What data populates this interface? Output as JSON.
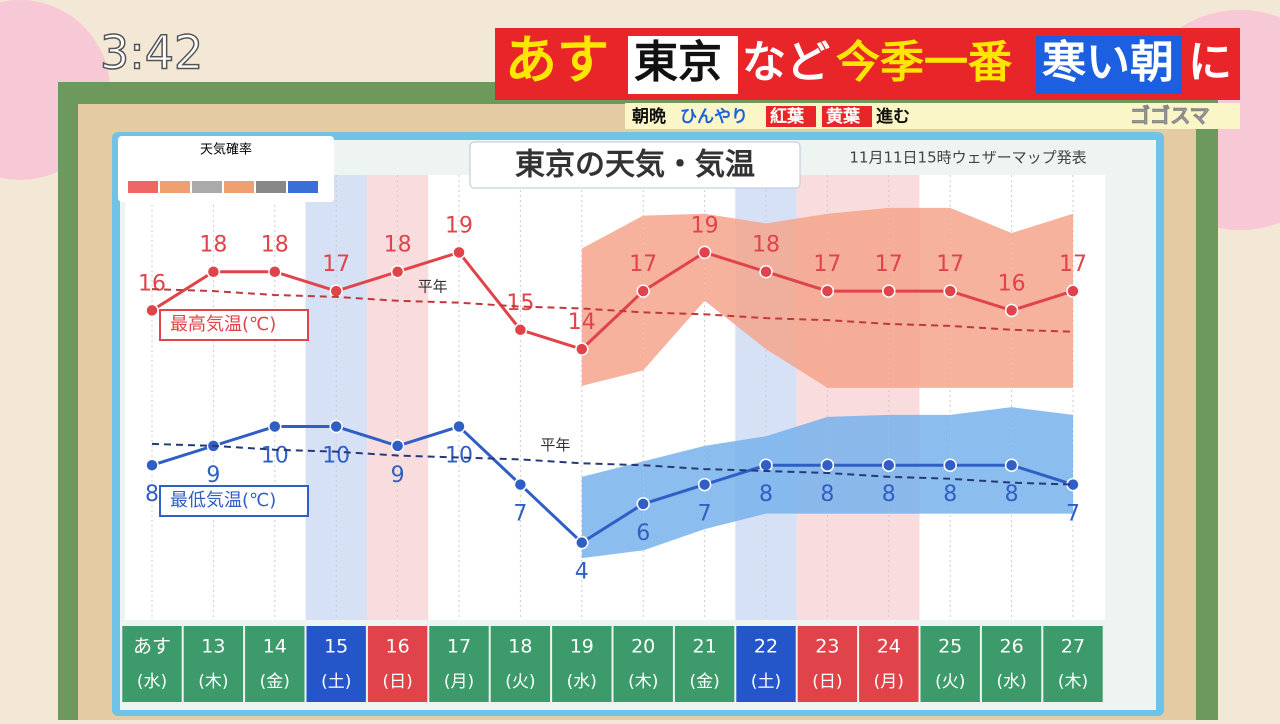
{
  "screen": {
    "clock": "3:42",
    "headline": [
      "あす",
      "東京",
      "など",
      "今季一番",
      "寒い朝",
      "に"
    ],
    "subline": [
      "朝晩",
      "ひんやり",
      "紅葉",
      "黄葉",
      "進む"
    ],
    "program": "ゴゴスマ",
    "probability_label": "天気確率"
  },
  "chart_data": {
    "type": "line",
    "title": "東京の天気・気温",
    "subtitle": "11月11日15時ウェザーマップ発表",
    "categories": [
      "あす",
      "13",
      "14",
      "15",
      "16",
      "17",
      "18",
      "19",
      "20",
      "21",
      "22",
      "23",
      "24",
      "25",
      "26",
      "27"
    ],
    "weekdays": [
      "(水)",
      "(木)",
      "(金)",
      "(土)",
      "(日)",
      "(月)",
      "(火)",
      "(水)",
      "(木)",
      "(金)",
      "(土)",
      "(日)",
      "(月)",
      "(火)",
      "(水)",
      "(木)"
    ],
    "category_colors": [
      "#3d9a6a",
      "#3d9a6a",
      "#3d9a6a",
      "#2456c9",
      "#e0444a",
      "#3d9a6a",
      "#3d9a6a",
      "#3d9a6a",
      "#3d9a6a",
      "#3d9a6a",
      "#2456c9",
      "#e0444a",
      "#e0444a",
      "#3d9a6a",
      "#3d9a6a",
      "#3d9a6a"
    ],
    "ylim": [
      0,
      23
    ],
    "series": [
      {
        "name": "最高気温(℃)",
        "color": "#e0444a",
        "values": [
          16,
          18,
          18,
          17,
          18,
          19,
          15,
          14,
          17,
          19,
          18,
          17,
          17,
          17,
          16,
          17
        ]
      },
      {
        "name": "最低気温(℃)",
        "color": "#2f5fc4",
        "values": [
          8,
          9,
          10,
          10,
          9,
          10,
          7,
          4,
          6,
          7,
          8,
          8,
          8,
          8,
          8,
          7
        ]
      },
      {
        "name": "平年",
        "color": "#c0393d",
        "dashed": true,
        "values": [
          17.1,
          17,
          16.8,
          16.7,
          16.5,
          16.4,
          16.2,
          16.1,
          15.9,
          15.8,
          15.6,
          15.5,
          15.3,
          15.2,
          15,
          14.9
        ]
      },
      {
        "name": "平年",
        "color": "#243a78",
        "dashed": true,
        "values": [
          9.1,
          9,
          8.8,
          8.7,
          8.5,
          8.4,
          8.3,
          8.1,
          8,
          7.8,
          7.7,
          7.6,
          7.4,
          7.3,
          7.1,
          7
        ]
      }
    ],
    "ranges": [
      {
        "color": "#f4a58c",
        "upper": [
          null,
          null,
          null,
          null,
          null,
          null,
          null,
          19.2,
          20.9,
          21,
          20.5,
          21,
          21.3,
          21.3,
          20,
          21
        ],
        "lower": [
          null,
          null,
          null,
          null,
          null,
          null,
          null,
          12.1,
          12.9,
          16.5,
          14,
          12,
          12,
          12,
          12,
          12
        ]
      },
      {
        "color": "#78b2ec",
        "upper": [
          null,
          null,
          null,
          null,
          null,
          null,
          null,
          7.4,
          8.2,
          9,
          9.5,
          10.5,
          10.6,
          10.6,
          11,
          10.6
        ],
        "lower": [
          null,
          null,
          null,
          null,
          null,
          null,
          null,
          3.2,
          3.6,
          4.7,
          5.5,
          5.5,
          5.5,
          5.5,
          5.5,
          5.5
        ]
      }
    ]
  }
}
